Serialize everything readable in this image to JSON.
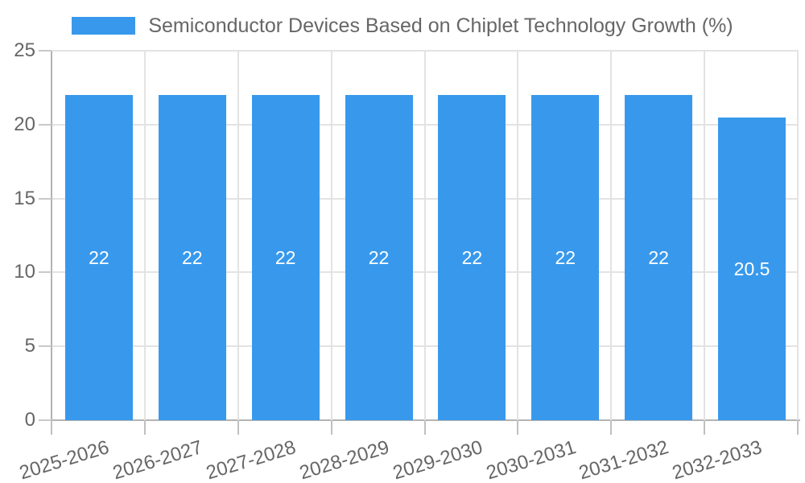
{
  "chart_data": {
    "type": "bar",
    "title": "Semiconductor Devices Based on Chiplet Technology Growth (%)",
    "categories": [
      "2025-2026",
      "2026-2027",
      "2027-2028",
      "2028-2029",
      "2029-2030",
      "2030-2031",
      "2031-2032",
      "2032-2033"
    ],
    "values": [
      22,
      22,
      22,
      22,
      22,
      22,
      22,
      20.5
    ],
    "bar_value_labels": [
      "22",
      "22",
      "22",
      "22",
      "22",
      "22",
      "22",
      "20.5"
    ],
    "xlabel": "",
    "ylabel": "",
    "ylim": [
      0,
      25
    ],
    "yticks": [
      0,
      5,
      10,
      15,
      20,
      25
    ],
    "grid": true,
    "legend_position": "top",
    "colors": {
      "bar": "#3899ec",
      "bar_label": "#ffffff",
      "axis": "#b3b3b3",
      "gridline": "#e3e3e3",
      "tick_mark": "#c9c9c9",
      "text": "#666666"
    }
  }
}
